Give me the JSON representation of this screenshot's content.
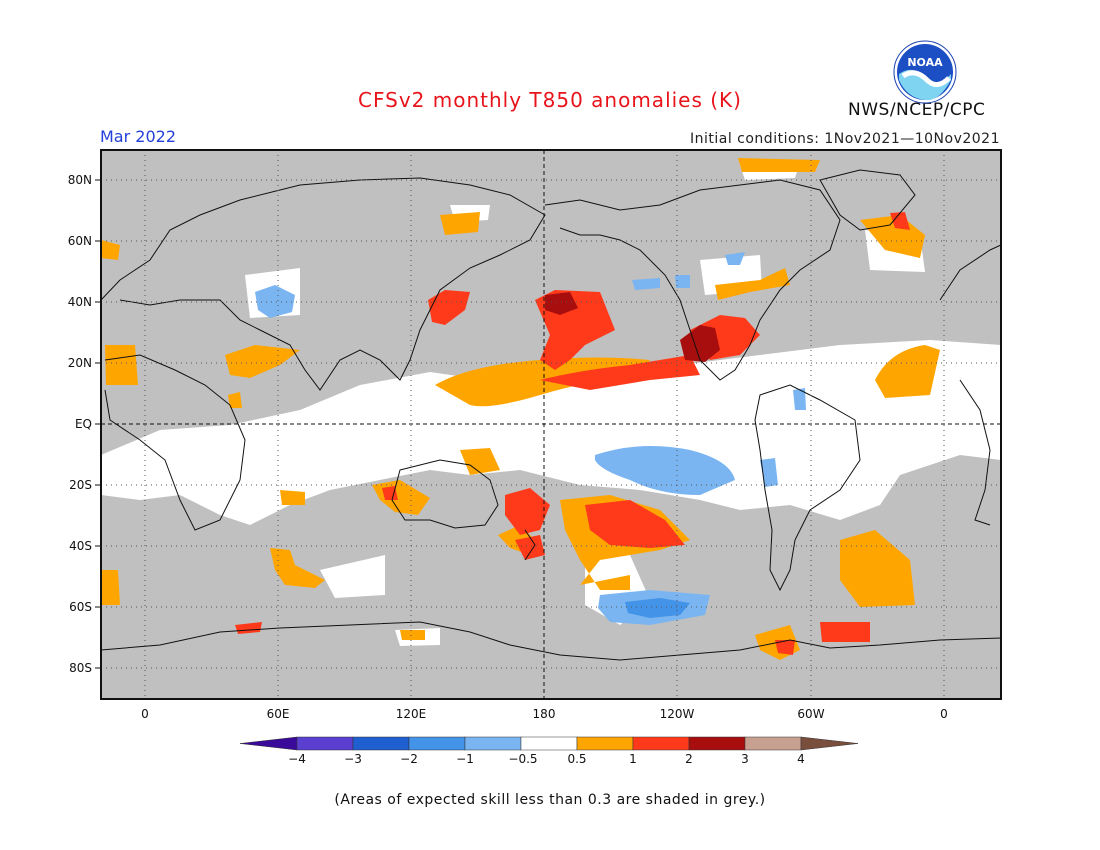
{
  "header": {
    "title": "CFSv2 monthly T850 anomalies (K)",
    "month": "Mar 2022",
    "initial_conditions": "Initial conditions: 1Nov2021—10Nov2021",
    "agency": "NWS/NCEP/CPC",
    "logo_text": "NOAA"
  },
  "map": {
    "lat_labels": [
      "80N",
      "60N",
      "40N",
      "20N",
      "EQ",
      "20S",
      "40S",
      "60S",
      "80S"
    ],
    "lon_labels": [
      "0",
      "60E",
      "120E",
      "180",
      "120W",
      "60W",
      "0"
    ],
    "grey_meaning": "Areas of expected skill less than 0.3 are shaded in grey."
  },
  "colorbar": {
    "ticks": [
      "−4",
      "−3",
      "−2",
      "−1",
      "−0.5",
      "0.5",
      "1",
      "2",
      "3",
      "4"
    ],
    "colors": [
      "#3a0a9a",
      "#5b3fd0",
      "#1f5fcf",
      "#4393e8",
      "#7ab5f2",
      "#ffffff",
      "#ffa500",
      "#ff3a1a",
      "#a80e0e",
      "#c8a090",
      "#7a4e3c"
    ]
  },
  "footnote": "(Areas of expected skill less than 0.3 are shaded in grey.)"
}
